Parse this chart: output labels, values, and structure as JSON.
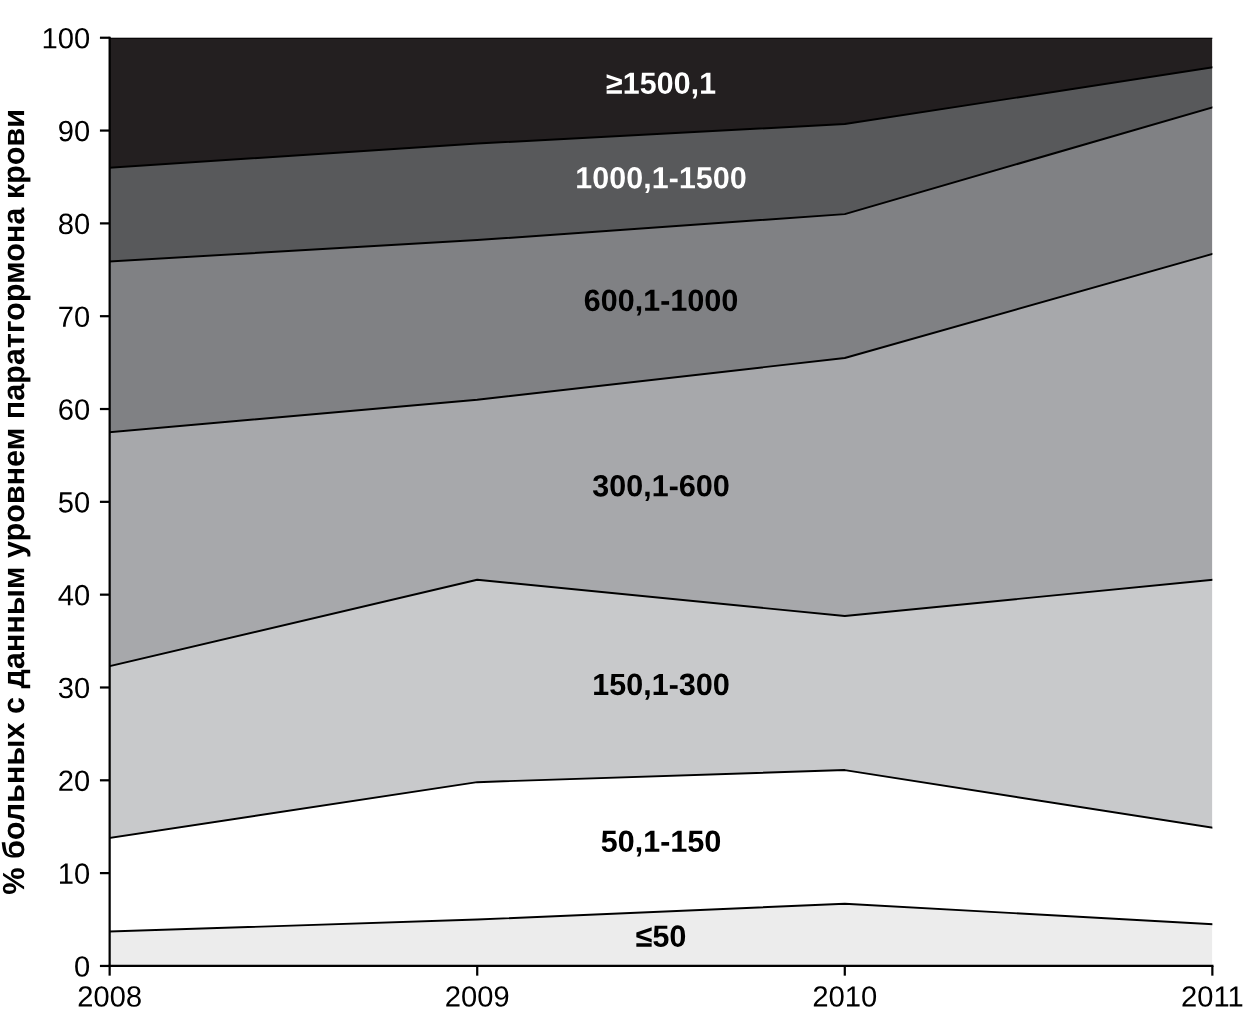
{
  "chart_data": {
    "type": "area",
    "stacked": true,
    "ylabel": "% больных с данным уровнем паратгормона крови",
    "x": [
      2008,
      2009,
      2010,
      2011
    ],
    "xlim": [
      2008,
      2011
    ],
    "xticks": [
      2008,
      2009,
      2010,
      2011
    ],
    "ylim": [
      0,
      100
    ],
    "yticks": [
      0,
      10,
      20,
      30,
      40,
      50,
      60,
      70,
      80,
      90,
      100
    ],
    "grid": false,
    "series": [
      {
        "name": "≤50",
        "color": "#ececec",
        "values": [
          3.7,
          5,
          6.7,
          4.5
        ]
      },
      {
        "name": "50,1-150",
        "color": "#ffffff",
        "values": [
          10.1,
          14.8,
          14.4,
          10.4
        ]
      },
      {
        "name": "150,1-300",
        "color": "#c8c9cb",
        "values": [
          18.5,
          21.8,
          16.6,
          26.7
        ]
      },
      {
        "name": "300,1-600",
        "color": "#a7a8ab",
        "values": [
          25.2,
          19.4,
          27.8,
          35.1
        ]
      },
      {
        "name": "600,1-1000",
        "color": "#808184",
        "values": [
          18.4,
          17.2,
          15.5,
          15.8
        ]
      },
      {
        "name": "1000,1-1500",
        "color": "#58595b",
        "values": [
          10.1,
          10.4,
          9.7,
          4.3
        ]
      },
      {
        "name": "≥1500,1",
        "color": "#231f20",
        "values": [
          14,
          11.4,
          9.3,
          3.2
        ]
      }
    ]
  }
}
